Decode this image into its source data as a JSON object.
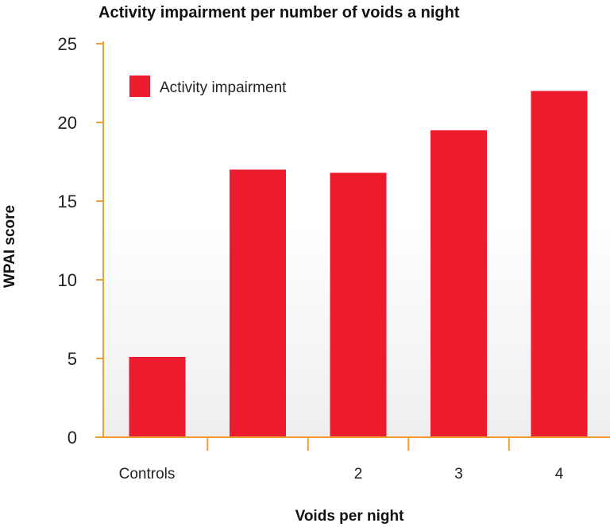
{
  "chart_data": {
    "type": "bar",
    "title": "Activity impairment per number of voids a night",
    "xlabel": "Voids per night",
    "ylabel": "WPAI score",
    "categories": [
      "Controls",
      "",
      "2",
      "3",
      "4"
    ],
    "series": [
      {
        "name": "Activity impairment",
        "values": [
          5.1,
          17.0,
          16.8,
          19.5,
          22.0
        ]
      }
    ],
    "ylim": [
      0,
      25
    ],
    "yticks": [
      0,
      5,
      10,
      15,
      20,
      25
    ],
    "grid": false,
    "legend_position": "top-left",
    "colors": {
      "bar": "#ed1b2e",
      "axis": "#f39c33",
      "background_gradient_bottom": "#eeeeee"
    }
  }
}
